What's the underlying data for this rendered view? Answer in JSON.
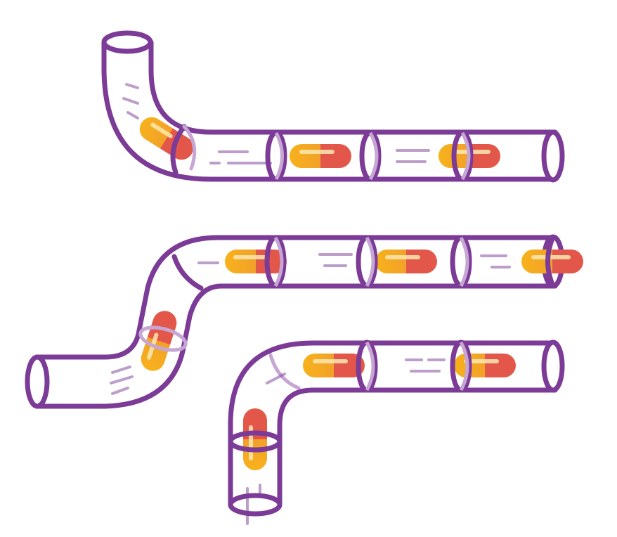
{
  "colors": {
    "pipe_stroke": "#7b3b96",
    "pipe_stroke_faint": "#c6a6d4",
    "pipe_fill": "#ffffff",
    "motion_line": "#7b3b96",
    "capsule_yellow": "#f7b21b",
    "capsule_orange": "#f2a12a",
    "capsule_red": "#e2574a",
    "capsule_highlight": "#fde7b0",
    "background": "#ffffff"
  },
  "illustration": {
    "subject": "capsules-travelling-through-pipes",
    "pipes": [
      "upper-elbow-pipe",
      "middle-s-pipe",
      "lower-elbow-pipe"
    ],
    "capsule_count": 10
  }
}
